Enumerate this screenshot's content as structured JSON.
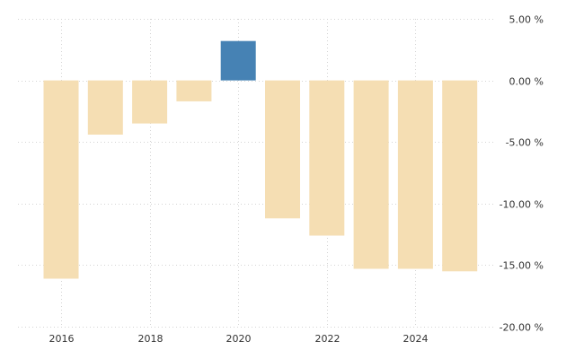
{
  "chart_data": {
    "type": "bar",
    "categories": [
      "2016",
      "2017",
      "2018",
      "2019",
      "2020",
      "2021",
      "2022",
      "2023",
      "2024",
      "2025"
    ],
    "values": [
      -16.1,
      -4.4,
      -3.5,
      -1.7,
      3.2,
      -11.2,
      -12.6,
      -15.3,
      -15.3,
      -15.5
    ],
    "ylim": [
      -20,
      5
    ],
    "y_ticks": [
      5,
      0,
      -5,
      -10,
      -15,
      -20
    ],
    "y_tick_labels": [
      "5.00 %",
      "0.00 %",
      "-5.00 %",
      "-10.00 %",
      "-15.00 %",
      "-20.00 %"
    ],
    "x_tick_labels": [
      "2016",
      "2018",
      "2020",
      "2022",
      "2024"
    ],
    "grid": true,
    "y_axis_position": "right",
    "colors": {
      "negative": "#f5deb3",
      "positive": "#4682b4",
      "grid": "#d4d4d4",
      "text": "#333333"
    },
    "title": "",
    "xlabel": "",
    "ylabel": ""
  }
}
